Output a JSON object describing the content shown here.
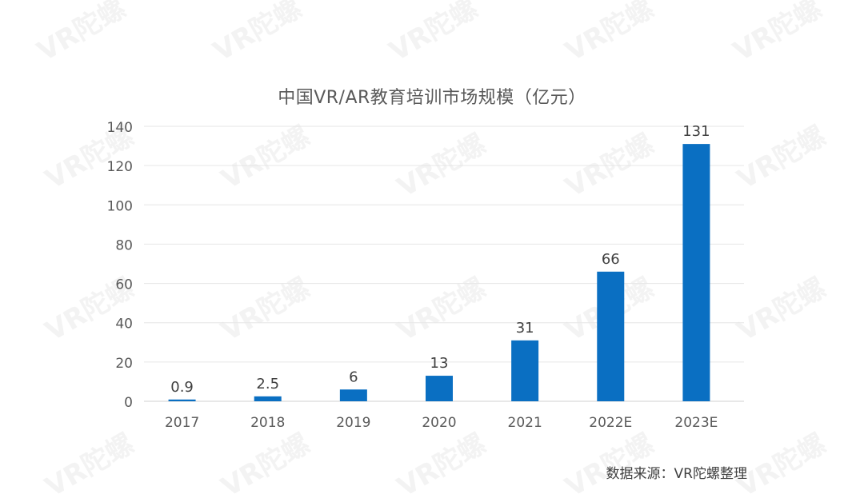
{
  "chart_data": {
    "type": "bar",
    "title": "中国VR/AR教育培训市场规模（亿元）",
    "xlabel": "",
    "ylabel": "",
    "categories": [
      "2017",
      "2018",
      "2019",
      "2020",
      "2021",
      "2022E",
      "2023E"
    ],
    "values": [
      0.9,
      2.5,
      6,
      13,
      31,
      66,
      131
    ],
    "data_labels": [
      "0.9",
      "2.5",
      "6",
      "13",
      "31",
      "66",
      "131"
    ],
    "ylim": [
      0,
      140
    ],
    "yticks": [
      0,
      20,
      40,
      60,
      80,
      100,
      120,
      140
    ],
    "grid": true,
    "legend": "none",
    "bar_color": "#0a6fc2"
  },
  "source_note": "数据来源：VR陀螺整理",
  "watermark_text": "VR陀螺",
  "colors": {
    "bar": "#0a6fc2",
    "grid": "#e6e6e6",
    "axis_text": "#595959",
    "label_text": "#404040"
  }
}
